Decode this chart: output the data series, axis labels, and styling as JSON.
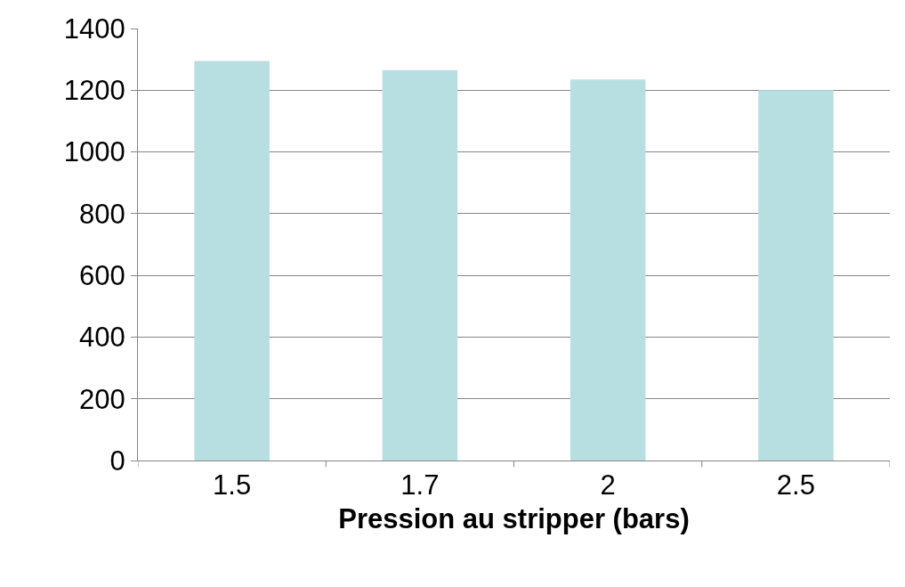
{
  "chart_data": {
    "type": "bar",
    "xlabel": "Pression au stripper (bars)",
    "categories": [
      "1.5",
      "1.7",
      "2",
      "2.5"
    ],
    "values": [
      1295,
      1265,
      1235,
      1200
    ],
    "color": "#b7dfe1",
    "ylim": [
      0,
      1400
    ],
    "yticks": [
      0,
      200,
      400,
      600,
      800,
      1000,
      1200,
      1400
    ],
    "grid": "y"
  }
}
